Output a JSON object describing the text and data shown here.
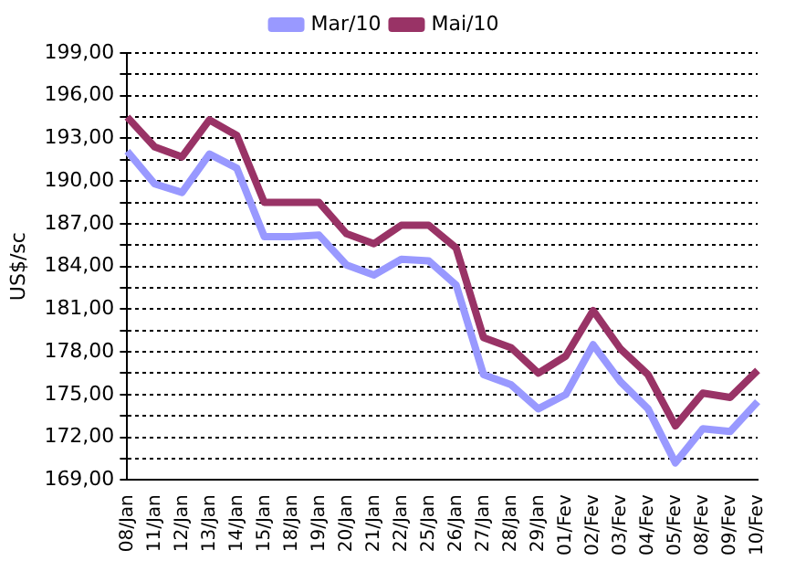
{
  "chart_data": {
    "type": "line",
    "ylabel": "US$/sc",
    "categories": [
      "08/Jan",
      "11/Jan",
      "12/Jan",
      "13/Jan",
      "14/Jan",
      "15/Jan",
      "18/Jan",
      "19/Jan",
      "20/Jan",
      "21/Jan",
      "22/Jan",
      "25/Jan",
      "26/Jan",
      "27/Jan",
      "28/Jan",
      "29/Jan",
      "01/Fev",
      "02/Fev",
      "03/Fev",
      "04/Fev",
      "05/Fev",
      "08/Fev",
      "09/Fev",
      "10/Fev"
    ],
    "series": [
      {
        "name": "Mar/10",
        "color": "#9999ff",
        "values": [
          192.1,
          189.8,
          189.2,
          191.9,
          190.9,
          186.1,
          186.1,
          186.2,
          184.1,
          183.4,
          184.5,
          184.4,
          182.7,
          176.4,
          175.7,
          174.0,
          175.0,
          178.5,
          175.9,
          174.0,
          170.2,
          172.6,
          172.4,
          174.5
        ]
      },
      {
        "name": "Mai/10",
        "color": "#993366",
        "values": [
          194.5,
          192.4,
          191.7,
          194.3,
          193.2,
          188.5,
          188.5,
          188.5,
          186.3,
          185.6,
          186.9,
          186.9,
          185.3,
          179.0,
          178.3,
          176.5,
          177.7,
          180.9,
          178.2,
          176.4,
          172.8,
          175.1,
          174.8,
          176.7
        ]
      }
    ],
    "ylim": [
      169,
      199
    ],
    "yticks": [
      {
        "value": 169,
        "label": "169,00"
      },
      {
        "value": 170.5,
        "label": null
      },
      {
        "value": 172,
        "label": "172,00"
      },
      {
        "value": 173.5,
        "label": null
      },
      {
        "value": 175,
        "label": "175,00"
      },
      {
        "value": 176.5,
        "label": null
      },
      {
        "value": 178,
        "label": "178,00"
      },
      {
        "value": 179.5,
        "label": null
      },
      {
        "value": 181,
        "label": "181,00"
      },
      {
        "value": 182.5,
        "label": null
      },
      {
        "value": 184,
        "label": "184,00"
      },
      {
        "value": 185.5,
        "label": null
      },
      {
        "value": 187,
        "label": "187,00"
      },
      {
        "value": 188.5,
        "label": null
      },
      {
        "value": 190,
        "label": "190,00"
      },
      {
        "value": 191.5,
        "label": null
      },
      {
        "value": 193,
        "label": "193,00"
      },
      {
        "value": 194.5,
        "label": null
      },
      {
        "value": 196,
        "label": "196,00"
      },
      {
        "value": 197.5,
        "label": null
      },
      {
        "value": 199,
        "label": "199,00"
      }
    ],
    "grid": "y",
    "legend": "top",
    "marker": "none",
    "line_style": "solid"
  }
}
